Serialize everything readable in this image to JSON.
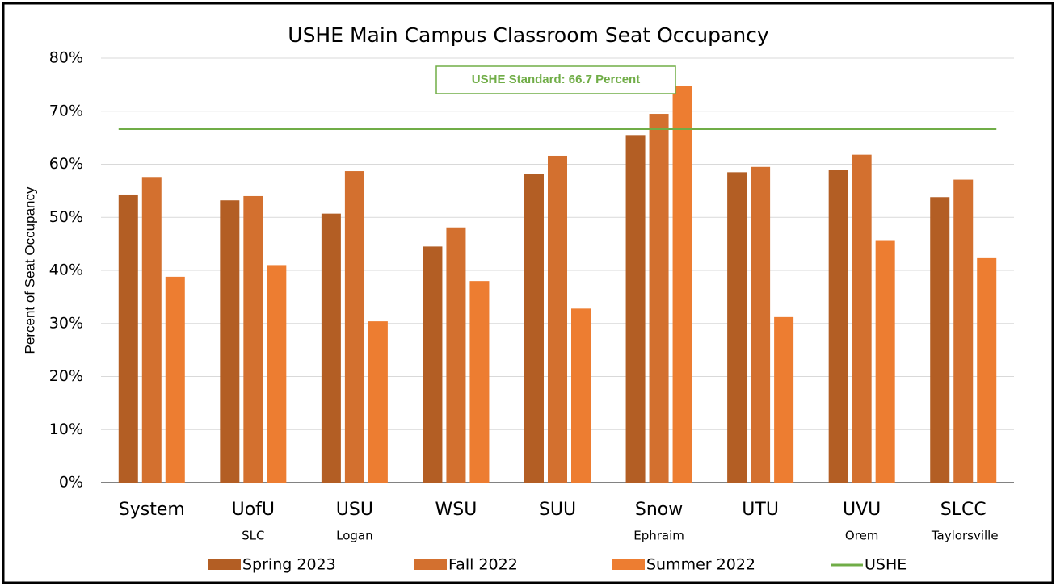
{
  "chart_data": {
    "type": "bar",
    "title": "USHE Main Campus Classroom Seat Occupancy",
    "y_label": "Percent of Seat Occupancy",
    "categories": [
      "System",
      "UofU",
      "USU",
      "WSU",
      "SUU",
      "Snow",
      "UTU",
      "UVU",
      "SLCC"
    ],
    "subcategories": [
      null,
      "SLC",
      "Logan",
      null,
      null,
      "Ephraim",
      null,
      "Orem",
      "Taylorsville"
    ],
    "series": [
      {
        "name": "Spring 2023",
        "color": "#b35e24",
        "values": [
          54.3,
          53.2,
          50.7,
          44.5,
          58.2,
          65.5,
          58.5,
          58.9,
          53.8
        ]
      },
      {
        "name": "Fall 2022",
        "color": "#d3702f",
        "values": [
          57.6,
          54.0,
          58.7,
          48.1,
          61.6,
          69.5,
          59.5,
          61.8,
          57.1
        ]
      },
      {
        "name": "Summer 2022",
        "color": "#ed7d31",
        "values": [
          38.8,
          41.0,
          30.4,
          38.0,
          32.8,
          74.8,
          31.2,
          45.7,
          42.3
        ]
      }
    ],
    "reference_line": {
      "name": "USHE",
      "value": 66.7,
      "color": "#70ad47"
    },
    "annotation": "USHE Standard: 66.7 Percent",
    "ylim": [
      0,
      80
    ],
    "yticks": [
      {
        "value": 0,
        "label": "0%"
      },
      {
        "value": 10,
        "label": "10%"
      },
      {
        "value": 20,
        "label": "20%"
      },
      {
        "value": 30,
        "label": "30%"
      },
      {
        "value": 40,
        "label": "40%"
      },
      {
        "value": 50,
        "label": "50%"
      },
      {
        "value": 60,
        "label": "60%"
      },
      {
        "value": 70,
        "label": "70%"
      },
      {
        "value": 80,
        "label": "80%"
      }
    ],
    "grid": true,
    "legend": "bottom"
  }
}
